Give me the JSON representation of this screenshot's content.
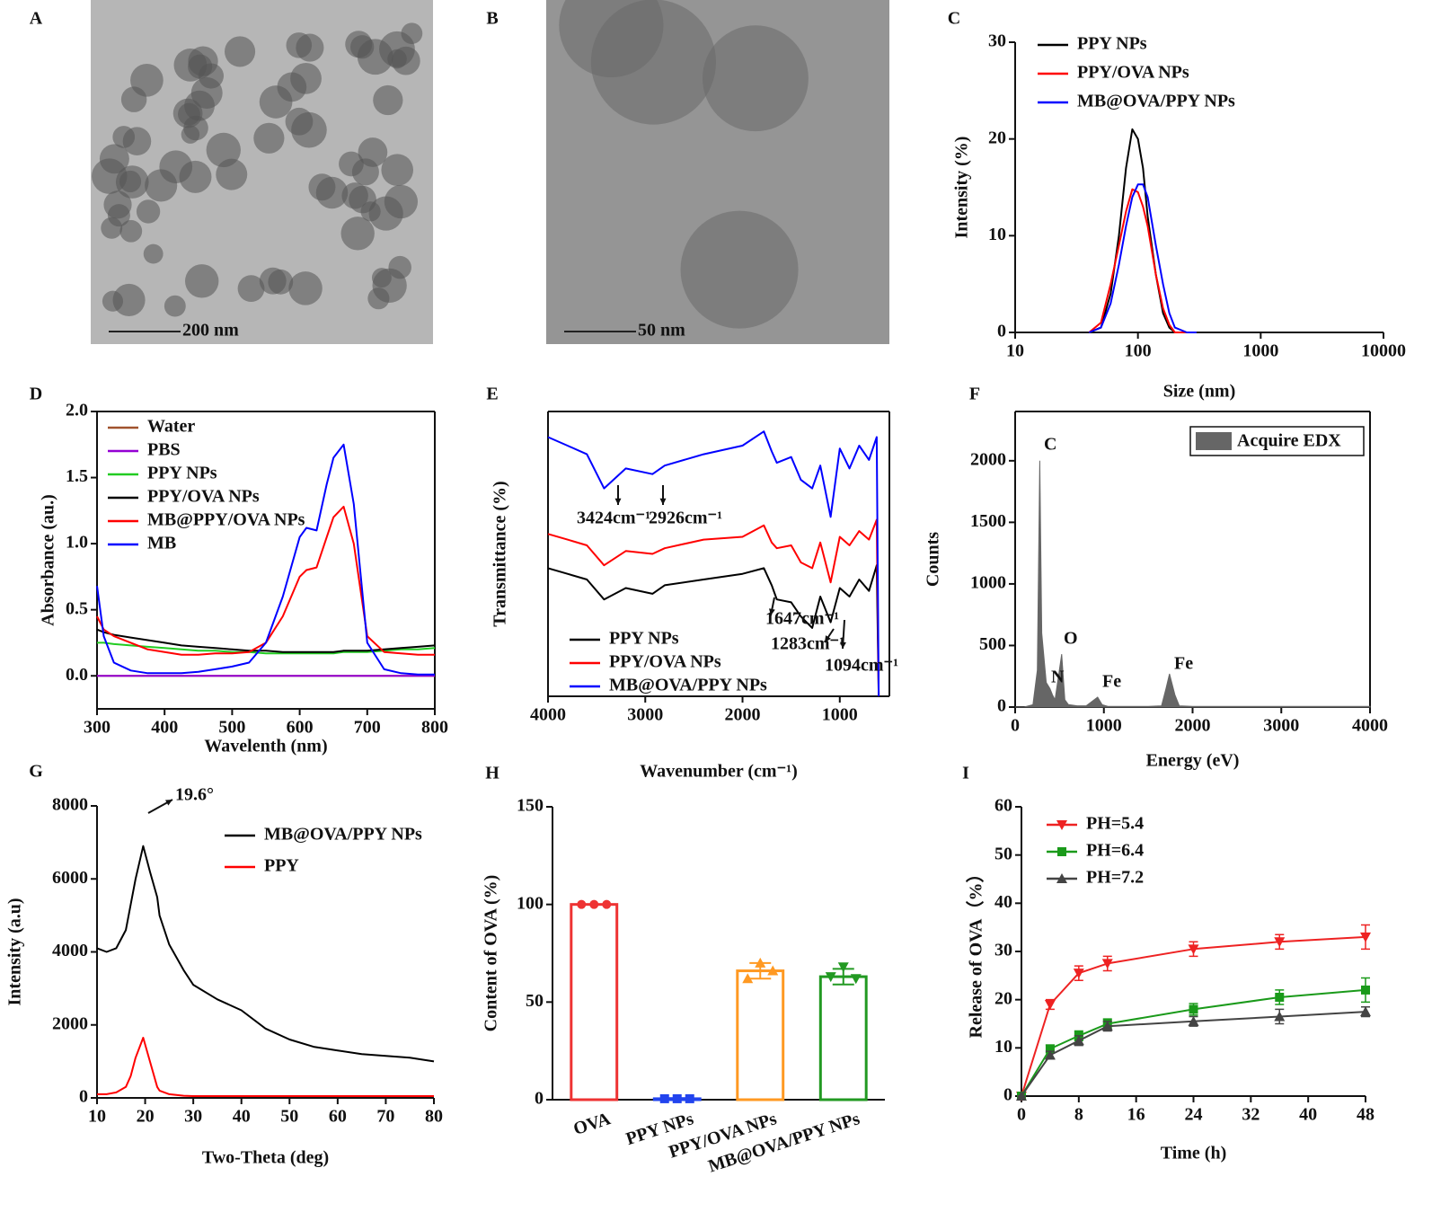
{
  "chart_data": [
    {
      "type": "image",
      "panel": "A",
      "scale_bar": "200 nm"
    },
    {
      "type": "image",
      "panel": "B",
      "scale_bar": "50 nm"
    },
    {
      "type": "line",
      "panel": "C",
      "x_label": "Size (nm)",
      "y_label": "Intensity (%)",
      "xlog": true,
      "xlim": [
        10,
        10000
      ],
      "xticks": [
        10,
        100,
        1000,
        10000
      ],
      "ylim": [
        0,
        30
      ],
      "yticks": [
        0,
        10,
        20,
        30
      ],
      "x": [
        40,
        50,
        60,
        70,
        80,
        90,
        100,
        110,
        120,
        140,
        160,
        180,
        200,
        250,
        300
      ],
      "series": [
        {
          "name": "PPY NPs",
          "color": "#000000",
          "values": [
            0,
            0.5,
            4,
            10,
            17,
            21,
            20,
            17,
            12,
            6,
            2,
            0.5,
            0,
            0,
            0
          ]
        },
        {
          "name": "PPY/OVA NPs",
          "color": "#ff0000",
          "values": [
            0,
            1,
            5,
            9,
            12.5,
            14.8,
            14.5,
            13,
            11,
            6,
            2.5,
            0.8,
            0,
            0,
            0
          ]
        },
        {
          "name": "MB@OVA/PPY NPs",
          "color": "#0000ff",
          "values": [
            0,
            0.5,
            3,
            7,
            11,
            14,
            15.3,
            15.3,
            14,
            9,
            5,
            2,
            0.5,
            0,
            0
          ]
        }
      ]
    },
    {
      "type": "line",
      "panel": "D",
      "x_label": "Wavelenth (nm)",
      "y_label": "Absorbance (au.)",
      "xlim": [
        300,
        800
      ],
      "xticks": [
        300,
        400,
        500,
        600,
        700,
        800
      ],
      "ylim": [
        -0.25,
        2.0
      ],
      "yticks": [
        {
          "value": 0,
          "label": "0.0"
        },
        0.5,
        {
          "value": 1,
          "label": "1.0"
        },
        1.5,
        {
          "value": 2,
          "label": "2.0"
        }
      ],
      "x": [
        300,
        310,
        325,
        350,
        375,
        400,
        425,
        450,
        475,
        500,
        525,
        550,
        575,
        600,
        610,
        625,
        640,
        650,
        665,
        680,
        700,
        725,
        750,
        775,
        800
      ],
      "series": [
        {
          "name": "Water",
          "color": "#a0522d",
          "values": [
            0,
            0,
            0,
            0,
            0,
            0,
            0,
            0,
            0,
            0,
            0,
            0,
            0,
            0,
            0,
            0,
            0,
            0,
            0,
            0,
            0,
            0,
            0,
            0,
            0
          ]
        },
        {
          "name": "PBS",
          "color": "#9400d3",
          "values": [
            0,
            0,
            0,
            0,
            0,
            0,
            0,
            0,
            0,
            0,
            0,
            0,
            0,
            0,
            0,
            0,
            0,
            0,
            0,
            0,
            0,
            0,
            0,
            0,
            0
          ]
        },
        {
          "name": "PPY NPs",
          "color": "#22cc22",
          "values": [
            0.25,
            0.25,
            0.24,
            0.23,
            0.22,
            0.21,
            0.2,
            0.19,
            0.19,
            0.18,
            0.18,
            0.17,
            0.17,
            0.17,
            0.17,
            0.17,
            0.17,
            0.17,
            0.18,
            0.18,
            0.18,
            0.19,
            0.2,
            0.2,
            0.21
          ]
        },
        {
          "name": "PPY/OVA NPs",
          "color": "#000000",
          "values": [
            0.35,
            0.33,
            0.31,
            0.29,
            0.27,
            0.25,
            0.23,
            0.22,
            0.21,
            0.2,
            0.19,
            0.19,
            0.18,
            0.18,
            0.18,
            0.18,
            0.18,
            0.18,
            0.19,
            0.19,
            0.19,
            0.2,
            0.21,
            0.22,
            0.23
          ]
        },
        {
          "name": "MB@PPY/OVA NPs",
          "color": "#ff0000",
          "values": [
            0.45,
            0.35,
            0.3,
            0.25,
            0.2,
            0.18,
            0.16,
            0.16,
            0.17,
            0.17,
            0.18,
            0.25,
            0.45,
            0.75,
            0.8,
            0.82,
            1.05,
            1.2,
            1.28,
            1.0,
            0.3,
            0.18,
            0.17,
            0.16,
            0.16
          ]
        },
        {
          "name": "MB",
          "color": "#0000ff",
          "values": [
            0.68,
            0.3,
            0.1,
            0.04,
            0.02,
            0.02,
            0.02,
            0.03,
            0.05,
            0.07,
            0.1,
            0.25,
            0.6,
            1.05,
            1.12,
            1.1,
            1.45,
            1.65,
            1.75,
            1.3,
            0.25,
            0.05,
            0.02,
            0.01,
            0.01
          ]
        }
      ]
    },
    {
      "type": "line",
      "panel": "E",
      "x_label": "Wavenumber (cm⁻¹)",
      "y_label": "Transmittance (%)",
      "xlim": [
        4000,
        490
      ],
      "xticks": [
        4000,
        3000,
        2000,
        1000
      ],
      "ylim": [
        0,
        10
      ],
      "annotations": [
        "3424cm⁻¹",
        "2926cm⁻¹",
        "1647cm⁻¹",
        "1283cm⁻¹",
        "1094cm⁻¹"
      ],
      "x": [
        4000,
        3800,
        3600,
        3424,
        3200,
        2926,
        2800,
        2400,
        2000,
        1780,
        1700,
        1647,
        1500,
        1400,
        1283,
        1200,
        1094,
        1000,
        900,
        800,
        700,
        620,
        600
      ],
      "series": [
        {
          "name": "PPY NPs",
          "color": "#000000",
          "values": [
            4.5,
            4.3,
            4.1,
            3.4,
            3.8,
            3.6,
            3.9,
            4.1,
            4.3,
            4.5,
            3.9,
            3.4,
            3.3,
            2.8,
            2.4,
            3.5,
            2.6,
            3.8,
            3.5,
            4.1,
            3.7,
            4.6,
            0
          ]
        },
        {
          "name": "PPY/OVA NPs",
          "color": "#ff0000",
          "values": [
            5.7,
            5.5,
            5.3,
            4.6,
            5.1,
            5.0,
            5.2,
            5.5,
            5.6,
            6.0,
            5.4,
            5.2,
            5.3,
            4.7,
            4.5,
            5.4,
            4.0,
            5.6,
            5.3,
            5.8,
            5.5,
            6.2,
            0
          ]
        },
        {
          "name": "MB@OVA/PPY NPs",
          "color": "#0000ff",
          "values": [
            9.1,
            8.8,
            8.5,
            7.3,
            8.0,
            7.8,
            8.1,
            8.5,
            8.8,
            9.3,
            8.6,
            8.2,
            8.4,
            7.6,
            7.3,
            8.1,
            6.3,
            8.7,
            8.0,
            8.8,
            8.3,
            9.1,
            0
          ]
        }
      ]
    },
    {
      "type": "area",
      "panel": "F",
      "x_label": "Energy (eV)",
      "y_label": "Counts",
      "xlim": [
        0,
        4000
      ],
      "xticks": [
        0,
        1000,
        2000,
        3000,
        4000
      ],
      "ylim": [
        0,
        2400
      ],
      "yticks": [
        0,
        500,
        1000,
        1500,
        2000
      ],
      "annotations": [
        "C",
        "N",
        "O",
        "Fe",
        "Fe"
      ],
      "x": [
        0,
        100,
        200,
        250,
        277,
        300,
        350,
        392,
        420,
        450,
        525,
        560,
        600,
        700,
        800,
        930,
        980,
        1050,
        1100,
        1500,
        1650,
        1700,
        1740,
        1800,
        1850,
        2000,
        3000,
        4000
      ],
      "series": [
        {
          "name": "Acquire EDX",
          "color": "#666666",
          "values": [
            0,
            0,
            20,
            300,
            2000,
            600,
            200,
            150,
            100,
            60,
            430,
            60,
            20,
            10,
            10,
            80,
            20,
            5,
            5,
            5,
            10,
            150,
            270,
            100,
            10,
            5,
            5,
            5
          ]
        }
      ]
    },
    {
      "type": "line",
      "panel": "G",
      "x_label": "Two-Theta (deg)",
      "y_label": "Intensity (a.u)",
      "xlim": [
        10,
        80
      ],
      "xticks": [
        10,
        20,
        30,
        40,
        50,
        60,
        70,
        80
      ],
      "ylim": [
        0,
        8000
      ],
      "yticks": [
        0,
        2000,
        4000,
        6000,
        8000
      ],
      "annotations": [
        "19.6°"
      ],
      "x": [
        10,
        12,
        14,
        16,
        17,
        18,
        19.6,
        21,
        22.5,
        23,
        25,
        28,
        30,
        35,
        40,
        45,
        50,
        55,
        60,
        65,
        70,
        75,
        80
      ],
      "series": [
        {
          "name": "MB@OVA/PPY NPs",
          "color": "#000000",
          "values": [
            4100,
            4000,
            4100,
            4600,
            5300,
            6000,
            6900,
            6200,
            5500,
            5000,
            4200,
            3500,
            3100,
            2700,
            2400,
            1900,
            1600,
            1400,
            1300,
            1200,
            1150,
            1100,
            1000
          ]
        },
        {
          "name": "PPY",
          "color": "#ff0000",
          "values": [
            100,
            100,
            150,
            300,
            600,
            1100,
            1650,
            1000,
            300,
            200,
            100,
            60,
            50,
            50,
            50,
            50,
            50,
            50,
            50,
            50,
            50,
            50,
            50
          ]
        }
      ]
    },
    {
      "type": "bar",
      "panel": "H",
      "y_label": "Content of OVA (%)",
      "ylim": [
        0,
        150
      ],
      "yticks": [
        0,
        50,
        100,
        150
      ],
      "categories": [
        "OVA",
        "PPY NPs",
        "PPY/OVA NPs",
        "MB@OVA/PPY NPs"
      ],
      "values": [
        100,
        0.5,
        66,
        63
      ],
      "errors": [
        0,
        0.3,
        4,
        4
      ],
      "points": [
        [
          100,
          100,
          100
        ],
        [
          0.5,
          0.5,
          0.5
        ],
        [
          62,
          70,
          66
        ],
        [
          63,
          68,
          62
        ]
      ],
      "colors": [
        "#ee3333",
        "#2244ee",
        "#ff9922",
        "#229922"
      ]
    },
    {
      "type": "line",
      "panel": "I",
      "x_label": "Time (h)",
      "y_label": "Release of OVA（%）",
      "xlim": [
        0,
        48
      ],
      "xticks": [
        0,
        8,
        16,
        24,
        32,
        40,
        48
      ],
      "ylim": [
        0,
        60
      ],
      "yticks": [
        0,
        10,
        20,
        30,
        40,
        50,
        60
      ],
      "x": [
        0,
        4,
        8,
        12,
        24,
        36,
        48
      ],
      "series": [
        {
          "name": "PH=5.4",
          "color": "#ee2222",
          "marker": "triangle-down",
          "values": [
            0,
            19,
            25.5,
            27.5,
            30.5,
            32,
            33
          ],
          "errors": [
            0,
            1,
            1.5,
            1.5,
            1.5,
            1.5,
            2.5
          ]
        },
        {
          "name": "PH=6.4",
          "color": "#1a9a1a",
          "marker": "square",
          "values": [
            0,
            9.8,
            12.5,
            15,
            18,
            20.5,
            22
          ],
          "errors": [
            0,
            0.8,
            1,
            1,
            1.2,
            1.5,
            2.5
          ]
        },
        {
          "name": "PH=7.2",
          "color": "#444444",
          "marker": "triangle-up",
          "values": [
            0,
            8.5,
            11.5,
            14.5,
            15.5,
            16.5,
            17.5
          ],
          "errors": [
            0,
            0.8,
            1,
            1,
            1,
            1.5,
            1
          ]
        }
      ]
    }
  ]
}
